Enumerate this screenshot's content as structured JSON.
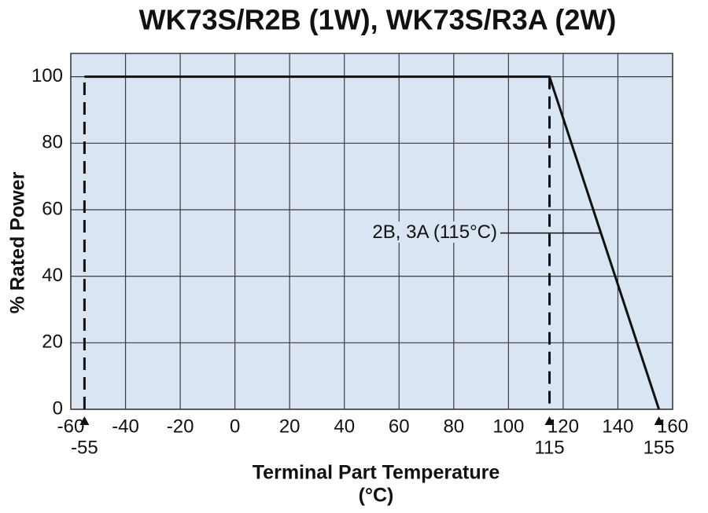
{
  "chart_data": {
    "type": "line",
    "title": "WK73S/R2B (1W), WK73S/R3A (2W)",
    "x_label": [
      "Terminal Part Temperature",
      "(°C)"
    ],
    "y_label": "% Rated Power",
    "xlim": [
      -60,
      160
    ],
    "ylim": [
      0,
      107
    ],
    "xticks": [
      -60,
      -40,
      -20,
      0,
      20,
      40,
      60,
      80,
      100,
      120,
      140,
      160
    ],
    "yticks": [
      0,
      20,
      40,
      60,
      80,
      100
    ],
    "x_markers": [
      -55,
      115,
      155
    ],
    "grid": true,
    "background": "#d9e5f3",
    "grid_color": "#3a3a3a",
    "series": [
      {
        "x": [
          -55,
          115,
          155
        ],
        "values": [
          100,
          100,
          0
        ],
        "color": "#111111",
        "dashed": false
      },
      {
        "x": [
          -55,
          -55
        ],
        "values": [
          0,
          100
        ],
        "color": "#111111",
        "dashed": true
      },
      {
        "x": [
          115,
          115
        ],
        "values": [
          100,
          0
        ],
        "color": "#111111",
        "dashed": true
      }
    ],
    "annotation": {
      "text": "2B, 3A (115°C)",
      "x": 133.5,
      "y": 53
    }
  }
}
